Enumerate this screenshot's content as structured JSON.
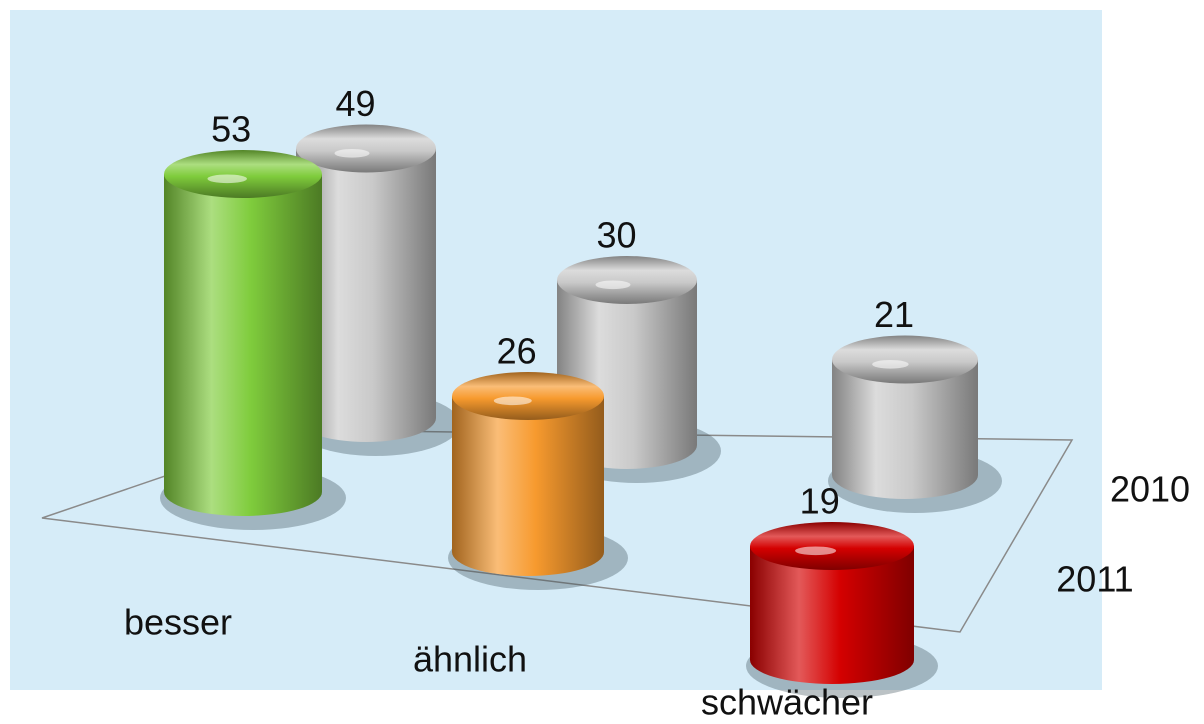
{
  "chart_data": {
    "type": "bar3d",
    "categories": [
      "besser",
      "ähnlich",
      "schwächer"
    ],
    "series": [
      {
        "name": "2011",
        "colors": [
          "#7fcc3c",
          "#f79a2e",
          "#d40000"
        ],
        "values": [
          53,
          26,
          19
        ]
      },
      {
        "name": "2010",
        "color": "#c9c9c9",
        "values": [
          49,
          30,
          21
        ]
      }
    ]
  }
}
